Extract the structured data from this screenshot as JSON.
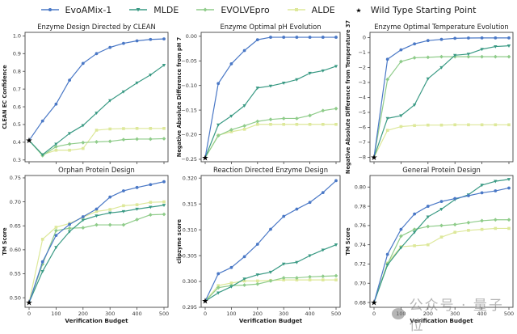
{
  "legend": [
    {
      "name": "EvoAMix-1",
      "color": "#4a78c6",
      "marker": "circle"
    },
    {
      "name": "MLDE",
      "color": "#3a9a84",
      "marker": "triangle"
    },
    {
      "name": "EVOLVEpro",
      "color": "#8fcc8a",
      "marker": "diamond"
    },
    {
      "name": "ALDE",
      "color": "#dde89a",
      "marker": "square"
    },
    {
      "name": "Wild Type Starting Point",
      "color": "#000000",
      "marker": "star"
    }
  ],
  "watermark": {
    "text": "公众号 · 量子位"
  },
  "chart_data": [
    {
      "type": "line",
      "title": "Enzyme Design Directed by CLEAN",
      "xlabel": "",
      "ylabel": "CLEAN EC Confidence",
      "x": [
        0,
        50,
        100,
        150,
        200,
        250,
        300,
        350,
        400,
        450,
        500
      ],
      "xticks": [
        "0",
        "100",
        "200",
        "300",
        "400",
        "500"
      ],
      "xtick_values": [
        0,
        100,
        200,
        300,
        400,
        500
      ],
      "show_xticklabels": false,
      "ylim": [
        0.29,
        1.02
      ],
      "yticks": [
        "0.3",
        "0.4",
        "0.5",
        "0.6",
        "0.7",
        "0.8",
        "0.9",
        "1.0"
      ],
      "ytick_values": [
        0.3,
        0.4,
        0.5,
        0.6,
        0.7,
        0.8,
        0.9,
        1.0
      ],
      "wild_type": 0.41,
      "series": [
        {
          "name": "EvoAMix-1",
          "values": [
            0.41,
            0.52,
            0.615,
            0.75,
            0.845,
            0.9,
            0.935,
            0.958,
            0.972,
            0.98,
            0.983
          ]
        },
        {
          "name": "MLDE",
          "values": [
            0.41,
            0.33,
            0.39,
            0.45,
            0.495,
            0.565,
            0.635,
            0.685,
            0.735,
            0.78,
            0.835
          ]
        },
        {
          "name": "EVOLVEpro",
          "values": [
            0.41,
            0.325,
            0.375,
            0.39,
            0.398,
            0.402,
            0.405,
            0.415,
            0.418,
            0.418,
            0.42
          ]
        },
        {
          "name": "ALDE",
          "values": [
            0.41,
            0.33,
            0.355,
            0.355,
            0.365,
            0.468,
            0.475,
            0.477,
            0.478,
            0.478,
            0.478
          ]
        }
      ]
    },
    {
      "type": "line",
      "title": "Enzyme Optimal pH Evolution",
      "xlabel": "",
      "ylabel": "Negative Absolute Difference from pH 7",
      "x": [
        0,
        50,
        100,
        150,
        200,
        250,
        300,
        350,
        400,
        450,
        500
      ],
      "xticks": [
        "0",
        "100",
        "200",
        "300",
        "400",
        "500"
      ],
      "xtick_values": [
        0,
        100,
        200,
        300,
        400,
        500
      ],
      "show_xticklabels": false,
      "ylim": [
        -0.255,
        0.008
      ],
      "yticks": [
        "-0.25",
        "-0.20",
        "-0.15",
        "-0.10",
        "-0.05",
        "0.00"
      ],
      "ytick_values": [
        -0.25,
        -0.2,
        -0.15,
        -0.1,
        -0.05,
        0.0
      ],
      "wild_type": -0.247,
      "series": [
        {
          "name": "EvoAMix-1",
          "values": [
            -0.247,
            -0.096,
            -0.056,
            -0.029,
            -0.007,
            -0.002,
            -0.002,
            -0.002,
            -0.002,
            -0.002,
            -0.002
          ]
        },
        {
          "name": "MLDE",
          "values": [
            -0.247,
            -0.18,
            -0.162,
            -0.141,
            -0.105,
            -0.101,
            -0.095,
            -0.088,
            -0.075,
            -0.07,
            -0.061
          ]
        },
        {
          "name": "EVOLVEpro",
          "values": [
            -0.247,
            -0.202,
            -0.19,
            -0.182,
            -0.173,
            -0.169,
            -0.167,
            -0.167,
            -0.161,
            -0.151,
            -0.147
          ]
        },
        {
          "name": "ALDE",
          "values": [
            -0.247,
            -0.201,
            -0.194,
            -0.189,
            -0.179,
            -0.179,
            -0.179,
            -0.179,
            -0.179,
            -0.179,
            -0.179
          ]
        }
      ]
    },
    {
      "type": "line",
      "title": "Enzyme Optimal Temperature Evolution",
      "xlabel": "",
      "ylabel": "Negative Absolute Difference from Temperature 37",
      "x": [
        0,
        50,
        100,
        150,
        200,
        250,
        300,
        350,
        400,
        450,
        500
      ],
      "xticks": [
        "0",
        "100",
        "200",
        "300",
        "400",
        "500"
      ],
      "xtick_values": [
        0,
        100,
        200,
        300,
        400,
        500
      ],
      "show_xticklabels": false,
      "ylim": [
        -8.3,
        0.35
      ],
      "yticks": [
        "-8",
        "-7",
        "-6",
        "-5",
        "-4",
        "-3",
        "-2",
        "-1",
        "0"
      ],
      "ytick_values": [
        -8,
        -7,
        -6,
        -5,
        -4,
        -3,
        -2,
        -1,
        0
      ],
      "wild_type": -8.0,
      "series": [
        {
          "name": "EvoAMix-1",
          "values": [
            -8.0,
            -1.45,
            -0.82,
            -0.42,
            -0.2,
            -0.12,
            -0.05,
            -0.03,
            -0.02,
            -0.02,
            -0.02
          ]
        },
        {
          "name": "MLDE",
          "values": [
            -8.0,
            -5.4,
            -5.22,
            -4.5,
            -2.75,
            -2.0,
            -1.18,
            -1.1,
            -0.78,
            -0.6,
            -0.55
          ]
        },
        {
          "name": "EVOLVEpro",
          "values": [
            -8.0,
            -2.8,
            -1.6,
            -1.35,
            -1.32,
            -1.28,
            -1.28,
            -1.28,
            -1.28,
            -1.28,
            -1.28
          ]
        },
        {
          "name": "ALDE",
          "values": [
            -8.0,
            -6.2,
            -5.95,
            -5.88,
            -5.85,
            -5.85,
            -5.83,
            -5.83,
            -5.83,
            -5.83,
            -5.83
          ]
        }
      ]
    },
    {
      "type": "line",
      "title": "Orphan Protein Design",
      "xlabel": "Verification Budget",
      "ylabel": "TM Score",
      "x": [
        0,
        50,
        100,
        150,
        200,
        250,
        300,
        350,
        400,
        450,
        500
      ],
      "xticks": [
        "0",
        "100",
        "200",
        "300",
        "400",
        "500"
      ],
      "xtick_values": [
        0,
        100,
        200,
        300,
        400,
        500
      ],
      "show_xticklabels": true,
      "ylim": [
        0.48,
        0.755
      ],
      "yticks": [
        "0.50",
        "0.55",
        "0.60",
        "0.65",
        "0.70",
        "0.75"
      ],
      "ytick_values": [
        0.5,
        0.55,
        0.6,
        0.65,
        0.7,
        0.75
      ],
      "wild_type": 0.49,
      "series": [
        {
          "name": "EvoAMix-1",
          "values": [
            0.49,
            0.575,
            0.63,
            0.653,
            0.669,
            0.685,
            0.71,
            0.723,
            0.73,
            0.736,
            0.742
          ]
        },
        {
          "name": "MLDE",
          "values": [
            0.49,
            0.555,
            0.605,
            0.638,
            0.662,
            0.671,
            0.677,
            0.68,
            0.685,
            0.689,
            0.693
          ]
        },
        {
          "name": "EVOLVEpro",
          "values": [
            0.49,
            0.57,
            0.64,
            0.645,
            0.646,
            0.652,
            0.652,
            0.652,
            0.663,
            0.673,
            0.674
          ]
        },
        {
          "name": "ALDE",
          "values": [
            0.49,
            0.622,
            0.647,
            0.655,
            0.668,
            0.68,
            0.684,
            0.692,
            0.694,
            0.699,
            0.7
          ]
        }
      ]
    },
    {
      "type": "line",
      "title": "Reaction Directed Enzyme Design",
      "xlabel": "Verification Budget",
      "ylabel": "clipzyme score",
      "x": [
        0,
        50,
        100,
        150,
        200,
        250,
        300,
        350,
        400,
        450,
        500
      ],
      "xticks": [
        "0",
        "100",
        "200",
        "300",
        "400",
        "500"
      ],
      "xtick_values": [
        0,
        100,
        200,
        300,
        400,
        500
      ],
      "show_xticklabels": true,
      "ylim": [
        0.295,
        0.3205
      ],
      "yticks": [
        "0.295",
        "0.300",
        "0.305",
        "0.310",
        "0.315",
        "0.320"
      ],
      "ytick_values": [
        0.295,
        0.3,
        0.305,
        0.31,
        0.315,
        0.32
      ],
      "wild_type": 0.2962,
      "series": [
        {
          "name": "EvoAMix-1",
          "values": [
            0.2962,
            0.3015,
            0.3027,
            0.3048,
            0.3072,
            0.3101,
            0.3126,
            0.314,
            0.3153,
            0.3172,
            0.3195
          ]
        },
        {
          "name": "MLDE",
          "values": [
            0.2962,
            0.2978,
            0.299,
            0.3005,
            0.3013,
            0.3018,
            0.3034,
            0.3037,
            0.305,
            0.3061,
            0.3071
          ]
        },
        {
          "name": "EVOLVEpro",
          "values": [
            0.2962,
            0.2988,
            0.2992,
            0.2993,
            0.2995,
            0.3001,
            0.3007,
            0.3007,
            0.3009,
            0.301,
            0.3011
          ]
        },
        {
          "name": "ALDE",
          "values": [
            0.2962,
            0.2992,
            0.2997,
            0.3001,
            0.3001,
            0.3002,
            0.3003,
            0.3003,
            0.3003,
            0.3003,
            0.3003
          ]
        }
      ]
    },
    {
      "type": "line",
      "title": "General Protein Design",
      "xlabel": "Verification Budget",
      "ylabel": "TM Score",
      "x": [
        0,
        50,
        100,
        150,
        200,
        250,
        300,
        350,
        400,
        450,
        500
      ],
      "xticks": [
        "0",
        "100",
        "200",
        "300",
        "400",
        "500"
      ],
      "xtick_values": [
        0,
        100,
        200,
        300,
        400,
        500
      ],
      "show_xticklabels": true,
      "ylim": [
        0.675,
        0.812
      ],
      "yticks": [
        "0.68",
        "0.70",
        "0.72",
        "0.74",
        "0.76",
        "0.78",
        "0.80"
      ],
      "ytick_values": [
        0.68,
        0.7,
        0.72,
        0.74,
        0.76,
        0.78,
        0.8
      ],
      "wild_type": 0.68,
      "series": [
        {
          "name": "EvoAMix-1",
          "values": [
            0.68,
            0.73,
            0.756,
            0.772,
            0.78,
            0.785,
            0.788,
            0.791,
            0.794,
            0.796,
            0.799
          ]
        },
        {
          "name": "MLDE",
          "values": [
            0.68,
            0.719,
            0.737,
            0.753,
            0.769,
            0.777,
            0.787,
            0.792,
            0.802,
            0.806,
            0.808
          ]
        },
        {
          "name": "EVOLVEpro",
          "values": [
            0.68,
            0.72,
            0.749,
            0.756,
            0.759,
            0.76,
            0.761,
            0.763,
            0.765,
            0.766,
            0.766
          ]
        },
        {
          "name": "ALDE",
          "values": [
            0.68,
            0.721,
            0.738,
            0.739,
            0.74,
            0.748,
            0.753,
            0.755,
            0.756,
            0.757,
            0.757
          ]
        }
      ]
    }
  ]
}
